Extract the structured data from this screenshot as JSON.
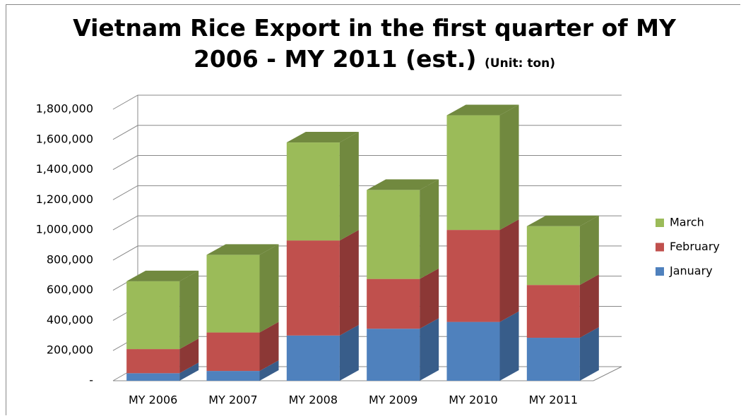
{
  "chart_data": {
    "type": "bar3d_stacked",
    "title": "Vietnam Rice Export in the first quarter of MY 2006 - MY 2011 (est.)",
    "unit_label": "(Unit: ton)",
    "categories": [
      "MY 2006",
      "MY 2007",
      "MY 2008",
      "MY 2009",
      "MY 2010",
      "MY 2011"
    ],
    "series": [
      {
        "name": "January",
        "color": "#4f81bd",
        "side_color": "#385d8a",
        "values": [
          50000,
          65000,
          300000,
          345000,
          390000,
          285000
        ]
      },
      {
        "name": "February",
        "color": "#c0504d",
        "side_color": "#8c3836",
        "values": [
          160000,
          255000,
          630000,
          330000,
          610000,
          350000
        ]
      },
      {
        "name": "March",
        "color": "#9bbb59",
        "side_color": "#71893f",
        "values": [
          450000,
          515000,
          650000,
          590000,
          760000,
          390000
        ]
      }
    ],
    "ylim": [
      0,
      1800000
    ],
    "yticks": [
      {
        "value": 0,
        "label": "-"
      },
      {
        "value": 200000,
        "label": "200,000"
      },
      {
        "value": 400000,
        "label": "400,000"
      },
      {
        "value": 600000,
        "label": "600,000"
      },
      {
        "value": 800000,
        "label": "800,000"
      },
      {
        "value": 1000000,
        "label": "1,000,000"
      },
      {
        "value": 1200000,
        "label": "1,200,000"
      },
      {
        "value": 1400000,
        "label": "1,400,000"
      },
      {
        "value": 1600000,
        "label": "1,600,000"
      },
      {
        "value": 1800000,
        "label": "1,800,000"
      }
    ],
    "grid": true,
    "legend": "right"
  }
}
